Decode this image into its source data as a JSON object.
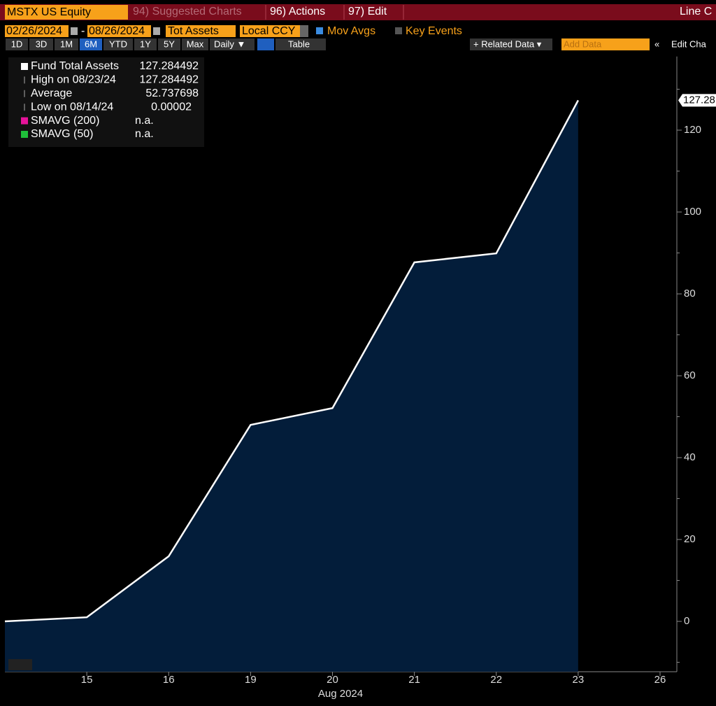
{
  "header": {
    "security": "MSTX US Equity",
    "menus": [
      "94) Suggested Charts",
      "96) Actions",
      "97) Edit"
    ],
    "chart_type": "Line C"
  },
  "controls": {
    "start_date": "02/26/2024",
    "separator": "-",
    "end_date": "08/26/2024",
    "field": "Tot Assets",
    "currency": "Local CCY",
    "mov_avgs": "Mov Avgs",
    "key_events": "Key Events"
  },
  "toolbar": {
    "periods": [
      "1D",
      "3D",
      "1M",
      "6M",
      "YTD",
      "1Y",
      "5Y",
      "Max"
    ],
    "selected_period": 3,
    "frequency": "Daily ▼",
    "table": "Table",
    "related_data": "+ Related Data ▾",
    "add_data": "Add Data",
    "collapse": "«",
    "edit": "Edit Cha"
  },
  "chart_data": {
    "type": "area",
    "x_label": "Aug 2024",
    "categories": [
      null,
      "15",
      "16",
      "19",
      "20",
      "21",
      "22",
      "23",
      "26"
    ],
    "series": [
      {
        "name": "Fund Total Assets",
        "color": "#ffffff",
        "fill": "#031d3a",
        "values": [
          2e-05,
          1.0,
          15.9,
          48.0,
          52.1,
          87.7,
          89.9,
          127.284492,
          null
        ],
        "value_labels": [
          null,
          null,
          null,
          null,
          null,
          null,
          null,
          "127.28",
          null
        ]
      }
    ],
    "last_value": 127.284492,
    "stats": [
      {
        "label": "High on 08/23/24",
        "value": 127.284492
      },
      {
        "label": "Average",
        "value": 52.737698
      },
      {
        "label": "Low on 08/14/24",
        "value": 2e-05
      }
    ],
    "indicators": [
      {
        "name": "SMAVG (200)",
        "color": "#e6139a",
        "value": "n.a."
      },
      {
        "name": "SMAVG (50)",
        "color": "#1fbf3a",
        "value": "n.a."
      }
    ],
    "ylim": [
      -12.3,
      138
    ],
    "yticks": [
      0,
      20,
      40,
      60,
      80,
      100,
      120
    ],
    "minor_yticks": [
      -10,
      10,
      30,
      50,
      70,
      90,
      110,
      130
    ]
  }
}
